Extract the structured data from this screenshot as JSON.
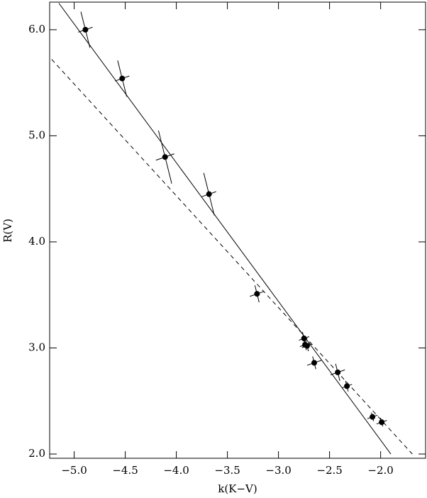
{
  "chart_data": {
    "type": "scatter",
    "xlabel": "k(K−V)",
    "ylabel": "R(V)",
    "xlim": [
      -5.24,
      -1.56
    ],
    "ylim": [
      1.96,
      6.26
    ],
    "xticks": [
      {
        "value": -5.0,
        "label": "−5.0"
      },
      {
        "value": -4.5,
        "label": "−4.5"
      },
      {
        "value": -4.0,
        "label": "−4.0"
      },
      {
        "value": -3.5,
        "label": "−3.5"
      },
      {
        "value": -3.0,
        "label": "−3.0"
      },
      {
        "value": -2.5,
        "label": "−2.5"
      },
      {
        "value": -2.0,
        "label": "−2.0"
      }
    ],
    "yticks": [
      {
        "value": 2,
        "label": "2.0"
      },
      {
        "value": 3,
        "label": "3.0"
      },
      {
        "value": 4,
        "label": "4.0"
      },
      {
        "value": 5,
        "label": "5.0"
      },
      {
        "value": 6,
        "label": "6.0"
      }
    ],
    "color": "#000000",
    "x": [
      -4.89,
      -4.53,
      -4.11,
      -3.68,
      -3.21,
      -2.75,
      -2.74,
      -2.72,
      -2.65,
      -2.42,
      -2.33,
      -2.08,
      -1.99
    ],
    "y": [
      6.0,
      5.54,
      4.8,
      4.45,
      3.51,
      3.09,
      3.03,
      3.02,
      2.86,
      2.77,
      2.64,
      2.35,
      2.3
    ],
    "yerr": [
      0.17,
      0.17,
      0.25,
      0.2,
      0.08,
      0.06,
      0.05,
      0.05,
      0.06,
      0.08,
      0.05,
      0.04,
      0.04
    ],
    "xerr": [
      0.07,
      0.07,
      0.09,
      0.07,
      0.07,
      0.05,
      0.05,
      0.05,
      0.07,
      0.07,
      0.05,
      0.05,
      0.05
    ],
    "lines": [
      {
        "style": "solid",
        "x": [
          -5.15,
          -1.9
        ],
        "y": [
          6.25,
          2.0
        ]
      },
      {
        "style": "dashed",
        "x": [
          -5.22,
          -1.69
        ],
        "y": [
          5.72,
          2.0
        ]
      }
    ]
  }
}
